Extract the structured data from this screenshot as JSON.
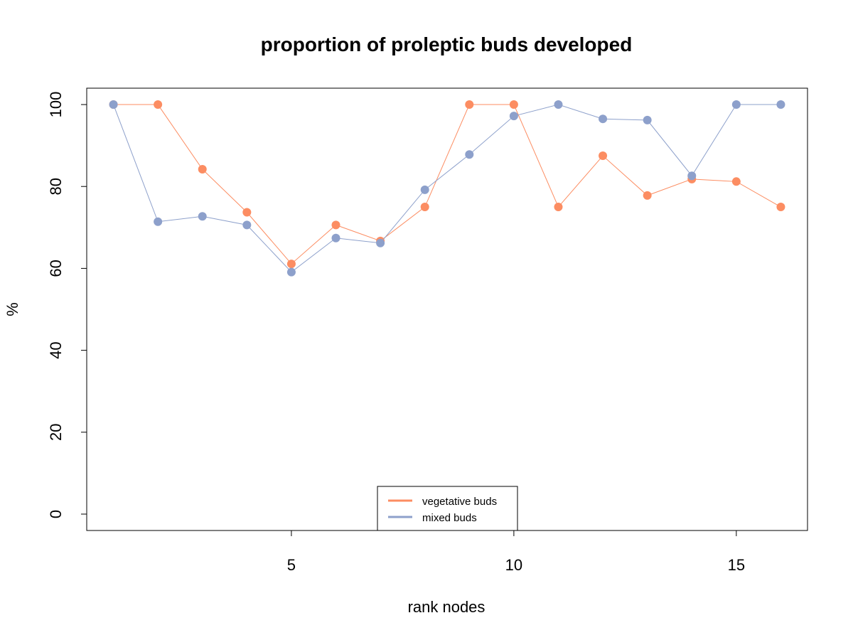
{
  "chart_data": {
    "type": "line",
    "title": "proportion of proleptic buds developed",
    "xlabel": "rank nodes",
    "ylabel": "%",
    "xlim": [
      0.4,
      16.6
    ],
    "ylim": [
      -4,
      104
    ],
    "x_ticks": [
      5,
      10,
      15
    ],
    "x_tick_labels": [
      "5",
      "10",
      "15"
    ],
    "y_ticks": [
      0,
      20,
      40,
      60,
      80,
      100
    ],
    "y_tick_labels": [
      "0",
      "20",
      "40",
      "60",
      "80",
      "100"
    ],
    "grid": false,
    "legend_position": "bottom-center",
    "x": [
      1,
      2,
      3,
      4,
      5,
      6,
      7,
      8,
      9,
      10,
      11,
      12,
      13,
      14,
      15,
      16
    ],
    "series": [
      {
        "name": "vegetative buds",
        "color": "#FC8D62",
        "values": [
          100,
          100,
          84.2,
          73.7,
          61.1,
          70.6,
          66.7,
          75,
          100,
          100,
          75,
          87.5,
          77.8,
          81.8,
          81.2,
          75
        ]
      },
      {
        "name": "mixed buds",
        "color": "#8DA0CB",
        "values": [
          100,
          71.4,
          72.7,
          70.6,
          59.1,
          67.4,
          66.2,
          79.2,
          87.8,
          97.2,
          100,
          96.5,
          96.2,
          82.6,
          100,
          100
        ]
      }
    ]
  }
}
